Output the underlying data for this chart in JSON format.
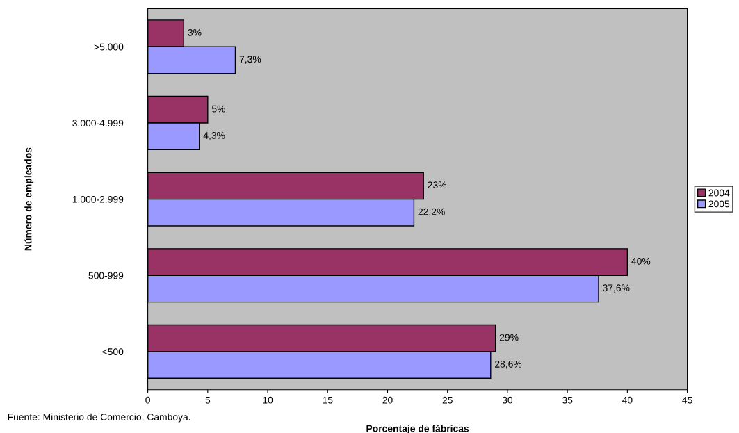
{
  "chart_data": {
    "type": "bar",
    "orientation": "horizontal",
    "xlabel": "Porcentaje de fábricas",
    "ylabel": "Número de empleados",
    "categories": [
      ">5.000",
      "3.000-4.999",
      "1.000-2.999",
      "500-999",
      "<500"
    ],
    "series": [
      {
        "name": "2004",
        "color": "#993366",
        "values": [
          3,
          5,
          23,
          40,
          29
        ],
        "value_labels": [
          "3%",
          "5%",
          "23%",
          "40%",
          "29%"
        ]
      },
      {
        "name": "2005",
        "color": "#9999ff",
        "values": [
          7.3,
          4.3,
          22.2,
          37.6,
          28.6
        ],
        "value_labels": [
          "7,3%",
          "4,3%",
          "22,2%",
          "37,6%",
          "28,6%"
        ]
      }
    ],
    "xlim": [
      0,
      45
    ],
    "xticks": [
      0,
      5,
      10,
      15,
      20,
      25,
      30,
      35,
      40,
      45
    ],
    "grid": false,
    "legend": "right",
    "annotations": [
      "Fuente: Ministerio de Comercio, Camboya."
    ]
  }
}
